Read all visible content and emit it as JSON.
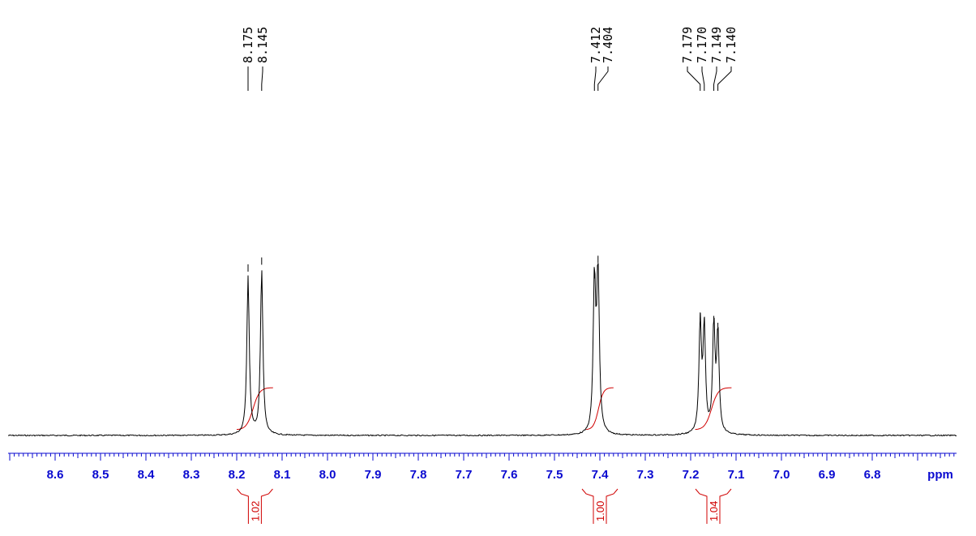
{
  "chart_data": {
    "type": "line",
    "title": "",
    "xlabel": "ppm",
    "ylabel": "",
    "x_axis": {
      "min": 6.6,
      "max": 8.7,
      "reversed": true,
      "tick_labels": [
        "8.6",
        "8.5",
        "8.4",
        "8.3",
        "8.2",
        "8.1",
        "8.0",
        "7.9",
        "7.8",
        "7.7",
        "7.6",
        "7.5",
        "7.4",
        "7.3",
        "7.2",
        "7.1",
        "7.0",
        "6.9",
        "6.8"
      ],
      "unit": "ppm"
    },
    "peak_picks": [
      "8.175",
      "8.145",
      "7.412",
      "7.404",
      "7.179",
      "7.170",
      "7.149",
      "7.140"
    ],
    "peaks": [
      {
        "ppm": 8.175,
        "intensity": 0.92
      },
      {
        "ppm": 8.145,
        "intensity": 0.96
      },
      {
        "ppm": 7.412,
        "intensity": 0.88
      },
      {
        "ppm": 7.404,
        "intensity": 0.97
      },
      {
        "ppm": 7.179,
        "intensity": 0.64
      },
      {
        "ppm": 7.17,
        "intensity": 0.61
      },
      {
        "ppm": 7.149,
        "intensity": 0.62
      },
      {
        "ppm": 7.14,
        "intensity": 0.58
      }
    ],
    "integrals": [
      {
        "from": 8.2,
        "to": 8.12,
        "value": "1.02"
      },
      {
        "from": 7.43,
        "to": 7.37,
        "value": "1.00"
      },
      {
        "from": 7.19,
        "to": 7.11,
        "value": "1.04"
      }
    ],
    "colors": {
      "spectrum": "#000000",
      "axis": "#0a0ad0",
      "integral": "#d00000"
    }
  }
}
